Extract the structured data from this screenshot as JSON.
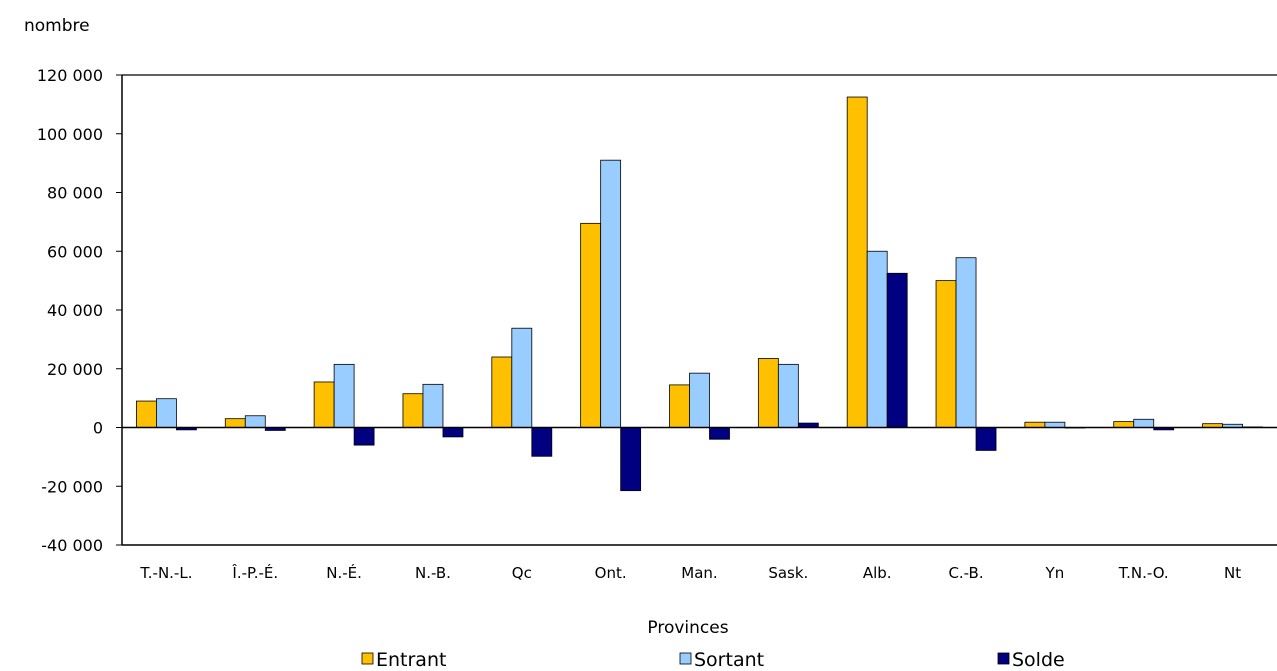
{
  "chart_data": {
    "type": "bar",
    "ylabel": "nombre",
    "xlabel": "Provinces",
    "ylim": [
      -40000,
      120000
    ],
    "ytick_values": [
      -40000,
      -20000,
      0,
      20000,
      40000,
      60000,
      80000,
      100000,
      120000
    ],
    "ytick_labels": [
      "-40 000",
      "-20 000",
      "0",
      "20 000",
      "40 000",
      "60 000",
      "80 000",
      "100 000",
      "120 000"
    ],
    "categories": [
      "T.-N.-L.",
      "Î.-P.-É.",
      "N.-É.",
      "N.-B.",
      "Qc",
      "Ont.",
      "Man.",
      "Sask.",
      "Alb.",
      "C.-B.",
      "Yn",
      "T.N.-O.",
      "Nt"
    ],
    "series": [
      {
        "name": "Entrant",
        "color": "#ffc000",
        "values": [
          9000,
          3000,
          15500,
          11500,
          24000,
          69500,
          14500,
          23500,
          112500,
          50000,
          1800,
          2000,
          1300
        ]
      },
      {
        "name": "Sortant",
        "color": "#99ccff",
        "values": [
          9800,
          4000,
          21500,
          14700,
          33800,
          91000,
          18500,
          21500,
          60000,
          57800,
          1800,
          2800,
          1100
        ]
      },
      {
        "name": "Solde",
        "color": "#000080",
        "values": [
          -800,
          -1000,
          -6000,
          -3200,
          -9800,
          -21500,
          -4000,
          1500,
          52500,
          -7800,
          0,
          -800,
          200
        ]
      }
    ],
    "grid": false,
    "legend_position": "bottom"
  }
}
